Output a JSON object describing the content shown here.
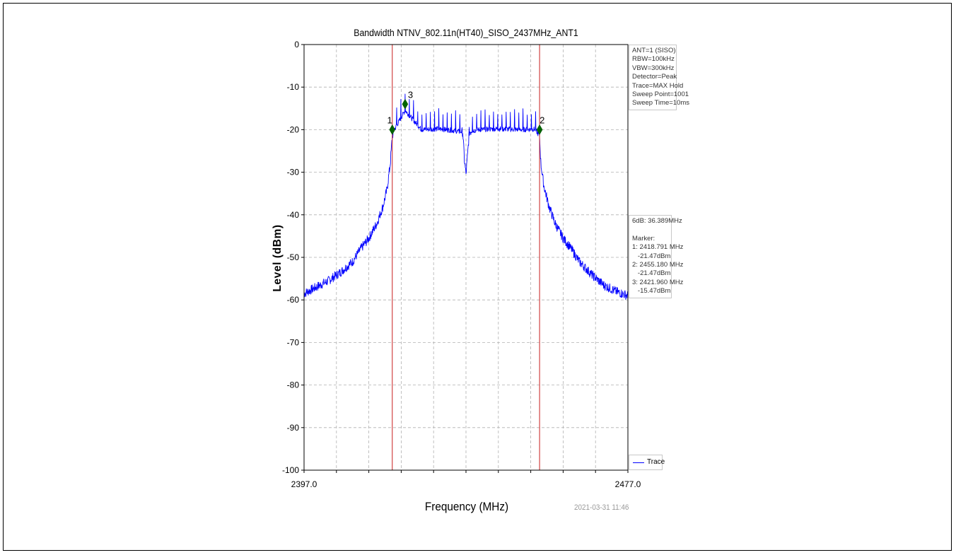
{
  "chart_data": {
    "type": "line",
    "title": "Bandwidth NTNV_802.11n(HT40)_SISO_2437MHz_ANT1",
    "xlabel": "Frequency (MHz)",
    "ylabel": "Level (dBm)",
    "xlim": [
      2397.0,
      2477.0
    ],
    "ylim": [
      -100,
      0
    ],
    "x_tick_labels": [
      "2397.0",
      "2477.0"
    ],
    "y_ticks": [
      0,
      -10,
      -20,
      -30,
      -40,
      -50,
      -60,
      -70,
      -80,
      -90,
      -100
    ],
    "grid": true,
    "series": [
      {
        "name": "Trace",
        "color": "#0000ff",
        "x": [
          2397,
          2400,
          2403,
          2406,
          2409,
          2411,
          2413,
          2415,
          2416.5,
          2417.5,
          2418.3,
          2418.791,
          2419.3,
          2421.96,
          2426,
          2430,
          2434,
          2435.5,
          2436.2,
          2436.6,
          2437,
          2437.4,
          2437.8,
          2438.6,
          2440,
          2445,
          2450,
          2454,
          2455.18,
          2455.5,
          2456.2,
          2457.5,
          2459,
          2461,
          2463,
          2465,
          2468,
          2471,
          2474,
          2477
        ],
        "y": [
          -58.5,
          -57,
          -55.5,
          -53.5,
          -51,
          -48,
          -45.5,
          -42,
          -38,
          -34,
          -28,
          -21.47,
          -20,
          -15.47,
          -20,
          -19.8,
          -20.2,
          -20.5,
          -20.5,
          -27,
          -30.5,
          -26,
          -20.5,
          -20.3,
          -20,
          -19.8,
          -20,
          -19.9,
          -21.47,
          -28,
          -33,
          -38,
          -42,
          -45.5,
          -48,
          -51,
          -54,
          -56.5,
          -58,
          -59
        ]
      }
    ],
    "markers": [
      {
        "id": "1",
        "freq_mhz": 2418.791,
        "level_dbm": -21.47,
        "plot_level": -20
      },
      {
        "id": "2",
        "freq_mhz": 2455.18,
        "level_dbm": -21.47,
        "plot_level": -20
      },
      {
        "id": "3",
        "freq_mhz": 2421.96,
        "level_dbm": -15.47,
        "plot_level": -14
      }
    ],
    "vertical_lines_mhz": [
      2418.791,
      2455.18
    ],
    "legend": "bottom-right",
    "colors": {
      "trace": "#0000ff",
      "marker_line": "#cc3333",
      "marker": "#006400",
      "grid": "#b0b0b0"
    }
  },
  "settings_lines": [
    "ANT=1 (SISO)",
    "RBW=100kHz",
    "VBW=300kHz",
    "Detector=Peak",
    "Trace=MAX Hold",
    "Sweep Point=1001",
    "Sweep Time=10ms"
  ],
  "results_lines": [
    "6dB: 36.389MHz",
    "",
    "Marker:",
    "1: 2418.791 MHz",
    "   -21.47dBm",
    "2: 2455.180 MHz",
    "   -21.47dBm",
    "3: 2421.960 MHz",
    "   -15.47dBm"
  ],
  "legend_label": "Trace",
  "timestamp": "2021-03-31 11:46"
}
